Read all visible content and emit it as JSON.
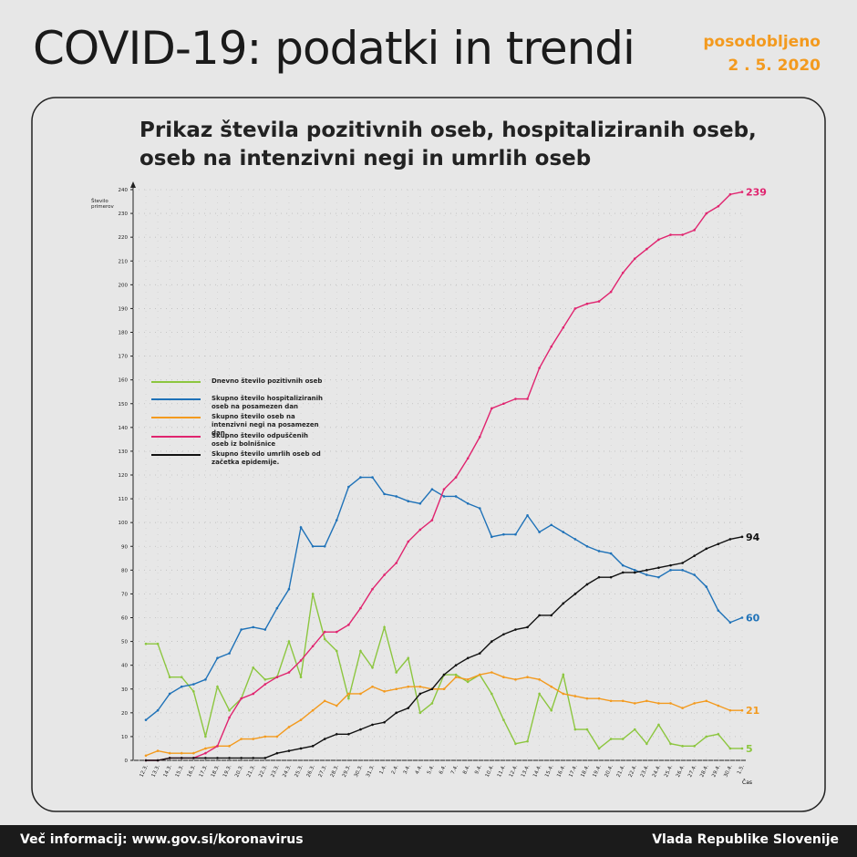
{
  "header": {
    "title": "COVID-19: podatki in trendi",
    "updated_label": "posodobljeno",
    "updated_date": "2 . 5. 2020"
  },
  "footer": {
    "left": "Več informacij: www.gov.si/koronavirus",
    "right": "Vlada Republike Slovenije"
  },
  "chart_data": {
    "type": "line",
    "title": "Prikaz števila pozitivnih oseb, hospitaliziranih oseb, oseb na intenzivni negi in umrlih oseb",
    "y_label": "Število primerov",
    "x_label": "Čas",
    "categories": [
      "12.3.",
      "13.3.",
      "14.3.",
      "15.3.",
      "16.3.",
      "17.3.",
      "18.3.",
      "19.3.",
      "20.3.",
      "21.3.",
      "22.3.",
      "23.3.",
      "24.3.",
      "25.3.",
      "26.3.",
      "27.3.",
      "28.3.",
      "29.3.",
      "30.3.",
      "31.3.",
      "1.4.",
      "2.4.",
      "3.4.",
      "4.4.",
      "5.4.",
      "6.4.",
      "7.4.",
      "8.4.",
      "9.4.",
      "10.4.",
      "11.4.",
      "12.4.",
      "13.4.",
      "14.4.",
      "15.4.",
      "16.4.",
      "17.4.",
      "18.4.",
      "19.4.",
      "20.4.",
      "21.4.",
      "22.4.",
      "23.4.",
      "24.4.",
      "25.4.",
      "26.4.",
      "27.4.",
      "28.4.",
      "29.4.",
      "30.4.",
      "1.5."
    ],
    "series": [
      {
        "name": "Dnevno število pozitivnih oseb",
        "color": "#8cc63f",
        "values": [
          49,
          49,
          35,
          35,
          29,
          10,
          31,
          21,
          26,
          39,
          34,
          35,
          50,
          35,
          70,
          51,
          46,
          26,
          46,
          39,
          56,
          37,
          43,
          20,
          24,
          36,
          36,
          33,
          36,
          28,
          17,
          7,
          8,
          28,
          21,
          36,
          13,
          13,
          5,
          9,
          9,
          13,
          7,
          15,
          7,
          6,
          6,
          10,
          11,
          5,
          5
        ]
      },
      {
        "name": "Skupno število hospitaliziranih oseb na posamezen dan",
        "color": "#1f72b8",
        "values": [
          17,
          21,
          28,
          31,
          32,
          34,
          43,
          45,
          55,
          56,
          55,
          64,
          72,
          98,
          90,
          90,
          101,
          115,
          119,
          119,
          112,
          111,
          109,
          108,
          114,
          111,
          111,
          108,
          106,
          94,
          95,
          95,
          103,
          96,
          99,
          96,
          93,
          90,
          88,
          87,
          82,
          80,
          78,
          77,
          80,
          80,
          78,
          73,
          63,
          58,
          60
        ]
      },
      {
        "name": "Skupno število oseb na intenzivni negi na posamezen dan.",
        "color": "#f39a1e",
        "values": [
          2,
          4,
          3,
          3,
          3,
          5,
          6,
          6,
          9,
          9,
          10,
          10,
          14,
          17,
          21,
          25,
          23,
          28,
          28,
          31,
          29,
          30,
          31,
          31,
          30,
          30,
          35,
          34,
          36,
          37,
          35,
          34,
          35,
          34,
          31,
          28,
          27,
          26,
          26,
          25,
          25,
          24,
          25,
          24,
          24,
          22,
          24,
          25,
          23,
          21,
          21
        ]
      },
      {
        "name": "Skupno število odpuščenih oseb iz bolnišnice",
        "color": "#e0246f",
        "values": [
          0,
          0,
          1,
          1,
          1,
          3,
          6,
          18,
          26,
          28,
          32,
          35,
          37,
          42,
          48,
          54,
          54,
          57,
          64,
          72,
          78,
          83,
          92,
          97,
          101,
          114,
          119,
          127,
          136,
          148,
          150,
          152,
          152,
          165,
          174,
          182,
          190,
          192,
          193,
          197,
          205,
          211,
          215,
          219,
          221,
          221,
          223,
          230,
          233,
          238,
          239
        ]
      },
      {
        "name": "Skupno število umrlih oseb od začetka epidemije.",
        "color": "#111111",
        "values": [
          0,
          0,
          1,
          1,
          1,
          1,
          1,
          1,
          1,
          1,
          1,
          3,
          4,
          5,
          6,
          9,
          11,
          11,
          13,
          15,
          16,
          20,
          22,
          28,
          30,
          36,
          40,
          43,
          45,
          50,
          53,
          55,
          56,
          61,
          61,
          66,
          70,
          74,
          77,
          77,
          79,
          79,
          80,
          81,
          82,
          83,
          86,
          89,
          91,
          93,
          94
        ]
      }
    ],
    "ylim": [
      0,
      240
    ],
    "yticks": [
      0,
      10,
      20,
      30,
      40,
      50,
      60,
      70,
      80,
      90,
      100,
      110,
      120,
      130,
      140,
      150,
      160,
      170,
      180,
      190,
      200,
      210,
      220,
      230,
      240
    ],
    "grid": true
  }
}
